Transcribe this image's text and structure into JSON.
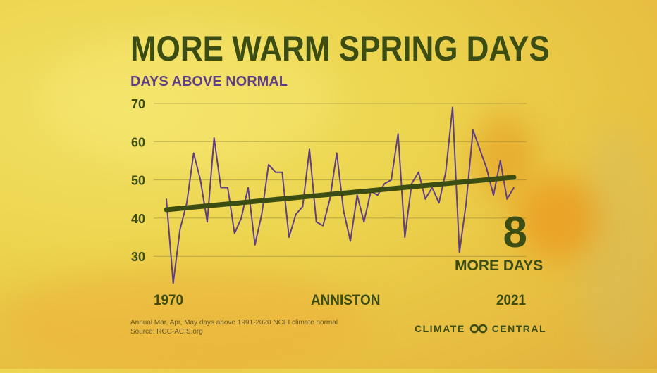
{
  "title": "MORE WARM SPRING DAYS",
  "subtitle": "DAYS ABOVE NORMAL",
  "location": "ANNISTON",
  "highlight": {
    "value": "8",
    "label": "MORE DAYS"
  },
  "footnote": {
    "line1": "Annual Mar, Apr, May days above 1991-2020 NCEI climate normal",
    "line2": "Source:  RCC-ACIS.org"
  },
  "brand": {
    "name_left": "CLIMATE",
    "name_right": "CENTRAL",
    "logo_icon": "climate-central-logo-icon"
  },
  "colors": {
    "title": "#3c4d14",
    "series": "#5f3f85",
    "trend": "#3c4d14"
  },
  "chart_data": {
    "type": "line",
    "x": [
      1970,
      1971,
      1972,
      1973,
      1974,
      1975,
      1976,
      1977,
      1978,
      1979,
      1980,
      1981,
      1982,
      1983,
      1984,
      1985,
      1986,
      1987,
      1988,
      1989,
      1990,
      1991,
      1992,
      1993,
      1994,
      1995,
      1996,
      1997,
      1998,
      1999,
      2000,
      2001,
      2002,
      2003,
      2004,
      2005,
      2006,
      2007,
      2008,
      2009,
      2010,
      2011,
      2012,
      2013,
      2014,
      2015,
      2016,
      2017,
      2018,
      2019,
      2020,
      2021
    ],
    "series": [
      {
        "values": [
          45,
          23,
          37,
          44,
          57,
          50,
          39,
          61,
          48,
          48,
          36,
          40,
          48,
          33,
          41,
          54,
          52,
          52,
          35,
          41,
          43,
          58,
          39,
          38,
          45,
          57,
          42,
          34,
          46,
          39,
          47,
          46,
          49,
          50,
          62,
          35,
          49,
          52,
          45,
          48,
          44,
          52,
          69,
          31,
          44,
          63,
          58,
          53,
          46,
          55,
          45,
          48
        ]
      }
    ],
    "trend": {
      "start": 42.2,
      "end": 50.7
    },
    "x_labels": {
      "first": "1970",
      "last": "2021"
    },
    "ylim": [
      20,
      70
    ],
    "yticks": [
      30,
      40,
      50,
      60,
      70
    ],
    "grid": true
  }
}
